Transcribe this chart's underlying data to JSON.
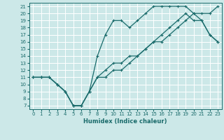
{
  "xlabel": "Humidex (Indice chaleur)",
  "bg_color": "#cce8e8",
  "grid_color": "#ffffff",
  "line_color": "#1a6b6b",
  "xlim": [
    -0.5,
    23.5
  ],
  "ylim": [
    6.5,
    21.5
  ],
  "yticks": [
    7,
    8,
    9,
    10,
    11,
    12,
    13,
    14,
    15,
    16,
    17,
    18,
    19,
    20,
    21
  ],
  "xticks": [
    0,
    1,
    2,
    3,
    4,
    5,
    6,
    7,
    8,
    9,
    10,
    11,
    12,
    13,
    14,
    15,
    16,
    17,
    18,
    19,
    20,
    21,
    22,
    23
  ],
  "line1_x": [
    0,
    1,
    2,
    3,
    4,
    5,
    6,
    7,
    8,
    9,
    10,
    11,
    12,
    13,
    14,
    15,
    16,
    17,
    18,
    19,
    20,
    21,
    22,
    23
  ],
  "line1_y": [
    11,
    11,
    11,
    10,
    9,
    7,
    7,
    9,
    11,
    12,
    13,
    13,
    14,
    14,
    15,
    16,
    16,
    17,
    18,
    19,
    20,
    19,
    17,
    16
  ],
  "line2_x": [
    0,
    1,
    2,
    3,
    4,
    5,
    6,
    7,
    8,
    9,
    10,
    11,
    12,
    13,
    14,
    15,
    16,
    17,
    18,
    19,
    20,
    21,
    22,
    23
  ],
  "line2_y": [
    11,
    11,
    11,
    10,
    9,
    7,
    7,
    9,
    14,
    17,
    19,
    19,
    18,
    19,
    20,
    21,
    21,
    21,
    21,
    21,
    20,
    20,
    20,
    21
  ],
  "line3_x": [
    0,
    1,
    2,
    3,
    4,
    5,
    6,
    7,
    8,
    9,
    10,
    11,
    12,
    13,
    14,
    15,
    16,
    17,
    18,
    19,
    20,
    21,
    22,
    23
  ],
  "line3_y": [
    11,
    11,
    11,
    10,
    9,
    7,
    7,
    9,
    11,
    11,
    12,
    12,
    13,
    14,
    15,
    16,
    17,
    18,
    19,
    20,
    19,
    19,
    17,
    16
  ]
}
